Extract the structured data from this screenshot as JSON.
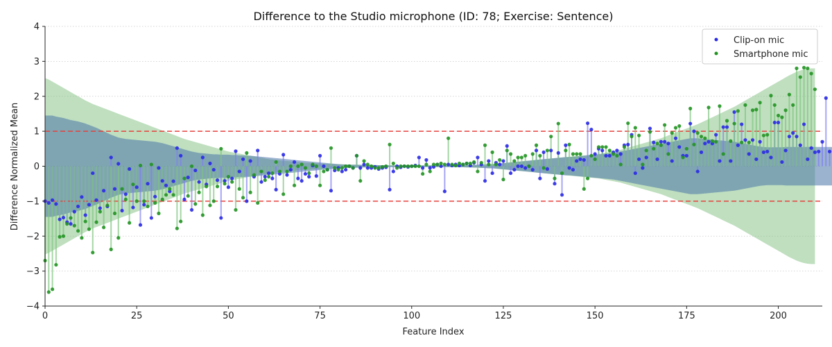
{
  "chart_data": {
    "type": "scatter",
    "title": "Difference to the Studio microphone (ID: 78; Exercise: Sentence)",
    "xlabel": "Feature Index",
    "ylabel": "Difference Normalized Mean",
    "xlim": [
      0,
      212
    ],
    "ylim": [
      -4,
      4
    ],
    "xticks": [
      0,
      25,
      50,
      75,
      100,
      125,
      150,
      175,
      200
    ],
    "yticks": [
      -4,
      -3,
      -2,
      -1,
      0,
      1,
      2,
      3,
      4
    ],
    "grid": "horizontal dotted",
    "legend_position": "top-right",
    "reference_lines": [
      1,
      -1
    ],
    "reference_line_color": "#e8413d",
    "series": [
      {
        "name": "Clip-on mic",
        "color": "#2a2ae6",
        "stem_color": "#7f7ff2",
        "band_color": "#4a74a8",
        "band_opacity": 0.55,
        "band_half_width": [
          1.45,
          1.45,
          1.45,
          1.42,
          1.4,
          1.38,
          1.35,
          1.32,
          1.3,
          1.28,
          1.25,
          1.22,
          1.18,
          1.14,
          1.1,
          1.05,
          1.0,
          0.95,
          0.9,
          0.86,
          0.82,
          0.8,
          0.78,
          0.77,
          0.76,
          0.75,
          0.74,
          0.73,
          0.72,
          0.71,
          0.7,
          0.68,
          0.66,
          0.63,
          0.6,
          0.57,
          0.54,
          0.51,
          0.48,
          0.45,
          0.42,
          0.4,
          0.38,
          0.37,
          0.36,
          0.35,
          0.34,
          0.34,
          0.33,
          0.33,
          0.33,
          0.32,
          0.32,
          0.31,
          0.31,
          0.3,
          0.3,
          0.29,
          0.28,
          0.27,
          0.26,
          0.25,
          0.24,
          0.23,
          0.22,
          0.21,
          0.2,
          0.19,
          0.18,
          0.17,
          0.16,
          0.15,
          0.14,
          0.13,
          0.12,
          0.11,
          0.1,
          0.09,
          0.08,
          0.07,
          0.06,
          0.05,
          0.05,
          0.04,
          0.04,
          0.04,
          0.04,
          0.03,
          0.03,
          0.03,
          0.03,
          0.03,
          0.03,
          0.03,
          0.02,
          0.02,
          0.02,
          0.02,
          0.02,
          0.02,
          0.02,
          0.02,
          0.02,
          0.02,
          0.02,
          0.02,
          0.02,
          0.02,
          0.02,
          0.02,
          0.02,
          0.02,
          0.02,
          0.03,
          0.03,
          0.03,
          0.03,
          0.04,
          0.04,
          0.05,
          0.05,
          0.06,
          0.06,
          0.07,
          0.08,
          0.09,
          0.1,
          0.11,
          0.12,
          0.13,
          0.14,
          0.15,
          0.16,
          0.17,
          0.18,
          0.19,
          0.2,
          0.21,
          0.22,
          0.23,
          0.24,
          0.25,
          0.26,
          0.26,
          0.27,
          0.28,
          0.29,
          0.3,
          0.31,
          0.32,
          0.33,
          0.34,
          0.35,
          0.36,
          0.37,
          0.38,
          0.4,
          0.42,
          0.44,
          0.46,
          0.48,
          0.5,
          0.52,
          0.54,
          0.56,
          0.58,
          0.6,
          0.62,
          0.64,
          0.66,
          0.68,
          0.7,
          0.72,
          0.74,
          0.76,
          0.78,
          0.8,
          0.8,
          0.8,
          0.79,
          0.78,
          0.77,
          0.76,
          0.75,
          0.74,
          0.73,
          0.72,
          0.71,
          0.7,
          0.68,
          0.66,
          0.64,
          0.62,
          0.6,
          0.58,
          0.56,
          0.55,
          0.54,
          0.54,
          0.54,
          0.54,
          0.54,
          0.55,
          0.55,
          0.55,
          0.55,
          0.55,
          0.55,
          0.55,
          0.55,
          0.55,
          0.55,
          0.55,
          0.55,
          0.55,
          0.55
        ],
        "values": [
          -1.0,
          -1.05,
          -0.97,
          -1.08,
          -1.52,
          -1.47,
          -1.6,
          -1.65,
          -1.3,
          -1.15,
          -0.88,
          -1.4,
          -1.1,
          -0.2,
          -0.97,
          -1.2,
          -0.7,
          -1.15,
          0.25,
          -0.65,
          0.07,
          -1.27,
          -0.8,
          -0.08,
          -1.18,
          -0.6,
          -1.68,
          -1.1,
          -0.5,
          -1.48,
          -0.87,
          -0.05,
          -0.42,
          -0.55,
          -0.72,
          -0.43,
          0.52,
          0.3,
          -0.95,
          -0.32,
          -1.25,
          -0.12,
          -0.45,
          0.25,
          -0.52,
          0.08,
          -0.1,
          -0.4,
          -1.48,
          -0.42,
          -0.6,
          -0.35,
          0.43,
          -0.15,
          0.2,
          -1.0,
          0.15,
          -0.3,
          0.45,
          -0.45,
          -0.3,
          -0.2,
          -0.35,
          -0.67,
          -0.22,
          0.33,
          -0.25,
          -0.1,
          0.12,
          -0.35,
          -0.42,
          -0.22,
          -0.3,
          0.02,
          -0.28,
          0.3,
          0.0,
          -0.1,
          -0.7,
          -0.12,
          -0.05,
          -0.15,
          -0.1,
          0.0,
          -0.05,
          0.3,
          -0.05,
          0.05,
          -0.05,
          -0.05,
          -0.02,
          -0.08,
          -0.05,
          -0.03,
          -0.67,
          -0.15,
          0.0,
          -0.03,
          0.0,
          -0.02,
          0.0,
          0.02,
          0.25,
          -0.05,
          0.18,
          -0.05,
          -0.02,
          0.05,
          0.0,
          -0.72,
          0.05,
          0.02,
          0.05,
          0.02,
          0.05,
          0.08,
          0.02,
          0.1,
          0.25,
          0.05,
          -0.42,
          0.15,
          -0.2,
          0.1,
          0.05,
          0.15,
          0.58,
          -0.2,
          -0.1,
          0.0,
          0.0,
          -0.05,
          0.0,
          -0.1,
          0.45,
          -0.35,
          0.4,
          -0.08,
          0.45,
          -0.5,
          0.38,
          -0.82,
          0.6,
          -0.05,
          -0.1,
          0.15,
          0.2,
          0.18,
          1.23,
          1.05,
          0.35,
          0.5,
          0.45,
          0.3,
          0.3,
          0.4,
          0.45,
          0.35,
          0.6,
          0.62,
          0.9,
          -0.2,
          0.2,
          -0.05,
          0.25,
          1.08,
          0.68,
          0.2,
          0.7,
          0.7,
          0.65,
          0.15,
          0.8,
          0.55,
          0.3,
          0.3,
          1.22,
          1.0,
          -0.15,
          0.4,
          0.65,
          0.7,
          0.65,
          0.9,
          0.15,
          1.12,
          1.12,
          0.15,
          1.55,
          0.6,
          1.2,
          0.75,
          0.35,
          0.75,
          0.2,
          0.7,
          0.4,
          0.42,
          0.25,
          1.25,
          1.25,
          0.12,
          0.45,
          0.85,
          0.95,
          0.85,
          0.6,
          1.2,
          0.2,
          0.52,
          0.4,
          0.42,
          0.7,
          1.95,
          0.42
        ]
      },
      {
        "name": "Smartphone mic",
        "color": "#229422",
        "stem_color": "#7ec47e",
        "band_color": "#7fbf7f",
        "band_opacity": 0.5,
        "band_half_width": [
          2.52,
          2.48,
          2.42,
          2.36,
          2.3,
          2.24,
          2.18,
          2.12,
          2.06,
          2.0,
          1.94,
          1.88,
          1.83,
          1.78,
          1.74,
          1.7,
          1.66,
          1.62,
          1.58,
          1.54,
          1.5,
          1.46,
          1.42,
          1.38,
          1.34,
          1.3,
          1.26,
          1.22,
          1.18,
          1.14,
          1.1,
          1.06,
          1.02,
          0.98,
          0.94,
          0.9,
          0.86,
          0.82,
          0.78,
          0.75,
          0.72,
          0.69,
          0.66,
          0.63,
          0.6,
          0.57,
          0.54,
          0.51,
          0.48,
          0.45,
          0.42,
          0.4,
          0.38,
          0.36,
          0.34,
          0.32,
          0.3,
          0.28,
          0.26,
          0.24,
          0.22,
          0.2,
          0.19,
          0.18,
          0.17,
          0.16,
          0.15,
          0.14,
          0.13,
          0.12,
          0.11,
          0.1,
          0.1,
          0.09,
          0.09,
          0.08,
          0.08,
          0.07,
          0.07,
          0.06,
          0.06,
          0.06,
          0.05,
          0.05,
          0.05,
          0.05,
          0.04,
          0.04,
          0.04,
          0.04,
          0.04,
          0.03,
          0.03,
          0.03,
          0.03,
          0.03,
          0.03,
          0.03,
          0.03,
          0.03,
          0.03,
          0.03,
          0.03,
          0.03,
          0.03,
          0.03,
          0.03,
          0.03,
          0.03,
          0.03,
          0.03,
          0.03,
          0.03,
          0.03,
          0.03,
          0.04,
          0.04,
          0.04,
          0.04,
          0.05,
          0.05,
          0.06,
          0.06,
          0.07,
          0.08,
          0.09,
          0.1,
          0.11,
          0.12,
          0.13,
          0.14,
          0.15,
          0.16,
          0.17,
          0.18,
          0.19,
          0.2,
          0.21,
          0.22,
          0.23,
          0.24,
          0.25,
          0.26,
          0.27,
          0.28,
          0.29,
          0.3,
          0.31,
          0.32,
          0.33,
          0.34,
          0.35,
          0.37,
          0.39,
          0.41,
          0.43,
          0.45,
          0.47,
          0.5,
          0.53,
          0.56,
          0.59,
          0.62,
          0.65,
          0.68,
          0.71,
          0.74,
          0.77,
          0.8,
          0.84,
          0.88,
          0.92,
          0.96,
          1.0,
          1.04,
          1.08,
          1.12,
          1.16,
          1.2,
          1.25,
          1.3,
          1.35,
          1.4,
          1.45,
          1.5,
          1.55,
          1.6,
          1.65,
          1.7,
          1.76,
          1.82,
          1.88,
          1.94,
          2.0,
          2.06,
          2.12,
          2.18,
          2.24,
          2.3,
          2.36,
          2.42,
          2.48,
          2.54,
          2.6,
          2.65,
          2.7,
          2.74,
          2.77,
          2.79,
          2.8,
          2.8
        ],
        "values": [
          -2.7,
          -3.6,
          -3.52,
          -2.82,
          -2.02,
          -2.0,
          -1.65,
          -1.48,
          -1.7,
          -1.85,
          -2.05,
          -1.58,
          -1.8,
          -2.47,
          -1.6,
          -1.3,
          -1.75,
          -1.12,
          -2.38,
          -1.35,
          -2.05,
          -0.65,
          -0.95,
          -1.62,
          -0.52,
          -1.0,
          0.02,
          -1.0,
          -1.15,
          0.05,
          -1.05,
          -1.35,
          -0.95,
          -0.82,
          -0.65,
          -0.82,
          -1.78,
          -1.58,
          -0.35,
          -0.85,
          0.0,
          -1.08,
          -0.75,
          -1.4,
          -0.58,
          -1.12,
          -1.0,
          -0.58,
          0.5,
          -0.5,
          -0.3,
          -0.45,
          -1.25,
          -0.65,
          -0.9,
          0.38,
          -0.75,
          -0.25,
          -1.05,
          -0.15,
          -0.4,
          -0.3,
          -0.2,
          0.12,
          -0.15,
          -0.8,
          -0.15,
          0.0,
          -0.55,
          0.0,
          0.05,
          -0.05,
          -0.2,
          0.05,
          0.0,
          -0.55,
          -0.15,
          -0.1,
          0.52,
          -0.05,
          -0.1,
          -0.05,
          0.0,
          0.0,
          -0.05,
          0.3,
          -0.42,
          0.15,
          0.05,
          0.0,
          -0.05,
          -0.05,
          -0.02,
          0.0,
          0.62,
          0.08,
          -0.05,
          0.0,
          0.0,
          0.0,
          0.0,
          0.0,
          0.0,
          -0.22,
          0.05,
          -0.15,
          0.05,
          0.05,
          0.08,
          0.05,
          0.8,
          0.05,
          0.02,
          0.08,
          0.05,
          0.08,
          0.08,
          0.12,
          -0.15,
          0.1,
          0.6,
          0.05,
          0.4,
          0.05,
          0.18,
          -0.38,
          0.45,
          0.35,
          0.15,
          0.25,
          0.25,
          0.3,
          0.0,
          0.35,
          0.6,
          0.3,
          -0.05,
          0.45,
          0.85,
          -0.35,
          1.22,
          -0.2,
          0.45,
          0.62,
          0.35,
          0.35,
          0.35,
          -0.65,
          -0.35,
          0.3,
          0.2,
          0.55,
          0.55,
          0.55,
          0.45,
          0.35,
          0.3,
          0.05,
          0.55,
          1.23,
          0.85,
          1.1,
          0.88,
          0.05,
          0.45,
          0.98,
          0.5,
          0.65,
          0.6,
          1.18,
          0.35,
          0.95,
          1.1,
          1.15,
          0.25,
          0.5,
          1.65,
          0.62,
          0.95,
          0.85,
          0.8,
          1.68,
          0.72,
          0.7,
          1.72,
          0.35,
          1.3,
          0.72,
          1.22,
          1.58,
          0.68,
          1.75,
          0.68,
          1.6,
          1.62,
          1.82,
          0.88,
          0.9,
          2.02,
          1.75,
          1.45,
          1.4,
          1.6,
          2.05,
          1.75,
          2.8,
          2.55,
          2.82,
          2.8,
          2.65,
          2.2
        ]
      }
    ]
  }
}
